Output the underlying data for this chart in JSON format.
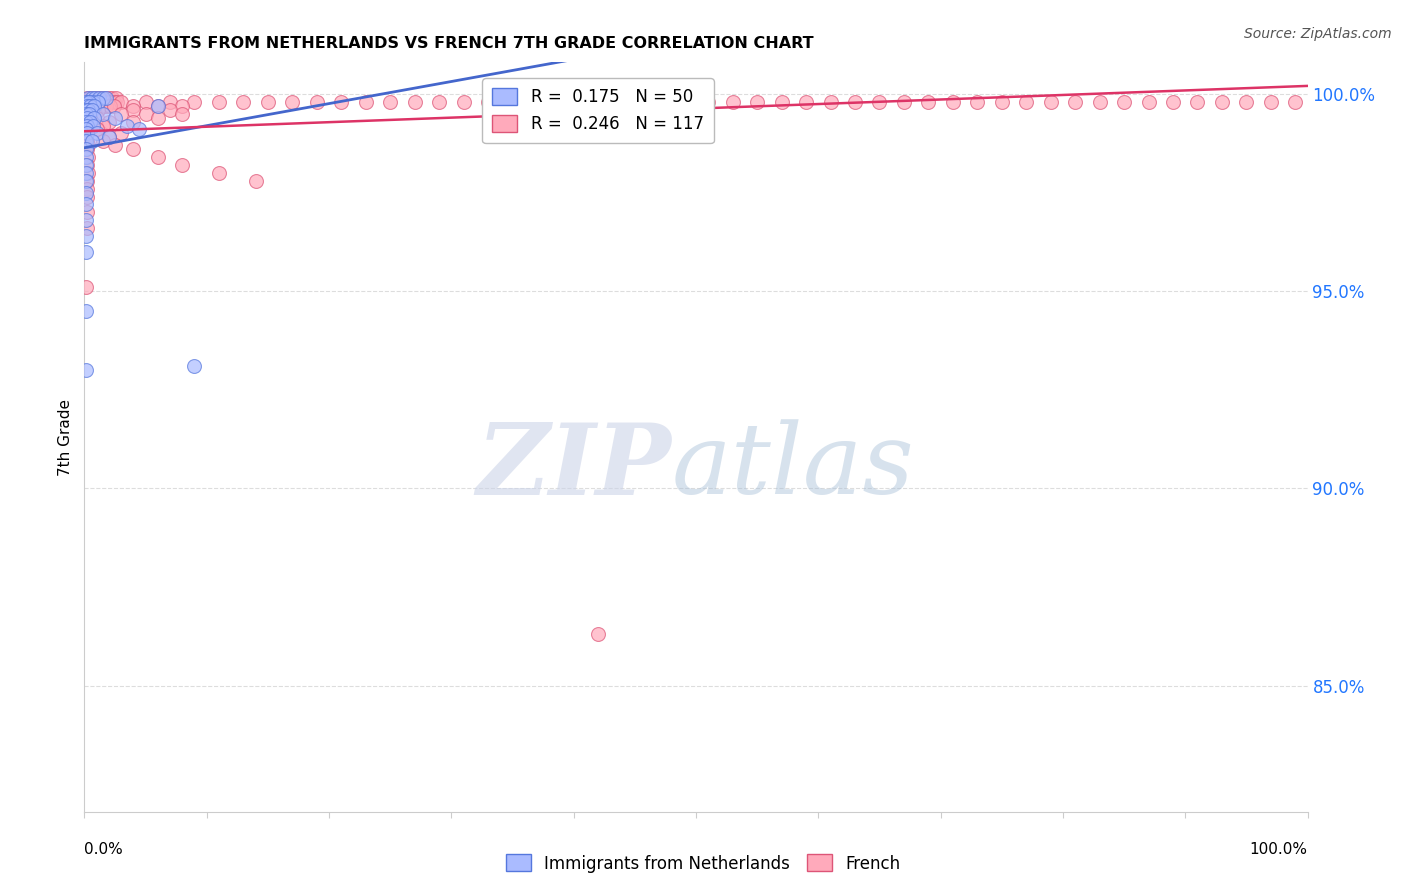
{
  "title": "IMMIGRANTS FROM NETHERLANDS VS FRENCH 7TH GRADE CORRELATION CHART",
  "source": "Source: ZipAtlas.com",
  "ylabel": "7th Grade",
  "ytick_labels": [
    "100.0%",
    "95.0%",
    "90.0%",
    "85.0%"
  ],
  "ytick_values": [
    1.0,
    0.95,
    0.9,
    0.85
  ],
  "xlim": [
    0.0,
    1.0
  ],
  "ylim": [
    0.818,
    1.008
  ],
  "blue_R": 0.175,
  "pink_R": 0.246,
  "blue_color": "#aabbff",
  "pink_color": "#ffaabb",
  "blue_edge_color": "#5577dd",
  "pink_edge_color": "#dd5577",
  "blue_line_color": "#4466cc",
  "pink_line_color": "#dd3366",
  "grid_color": "#dddddd",
  "blue_scatter": [
    [
      0.003,
      0.999
    ],
    [
      0.006,
      0.999
    ],
    [
      0.009,
      0.999
    ],
    [
      0.012,
      0.999
    ],
    [
      0.015,
      0.999
    ],
    [
      0.018,
      0.999
    ],
    [
      0.003,
      0.998
    ],
    [
      0.007,
      0.998
    ],
    [
      0.011,
      0.998
    ],
    [
      0.001,
      0.998
    ],
    [
      0.004,
      0.998
    ],
    [
      0.002,
      0.997
    ],
    [
      0.005,
      0.997
    ],
    [
      0.008,
      0.997
    ],
    [
      0.001,
      0.996
    ],
    [
      0.003,
      0.996
    ],
    [
      0.006,
      0.996
    ],
    [
      0.001,
      0.995
    ],
    [
      0.004,
      0.995
    ],
    [
      0.015,
      0.995
    ],
    [
      0.002,
      0.994
    ],
    [
      0.008,
      0.994
    ],
    [
      0.001,
      0.993
    ],
    [
      0.005,
      0.993
    ],
    [
      0.002,
      0.992
    ],
    [
      0.007,
      0.992
    ],
    [
      0.001,
      0.991
    ],
    [
      0.002,
      0.99
    ],
    [
      0.01,
      0.99
    ],
    [
      0.001,
      0.988
    ],
    [
      0.006,
      0.988
    ],
    [
      0.001,
      0.986
    ],
    [
      0.001,
      0.984
    ],
    [
      0.001,
      0.982
    ],
    [
      0.001,
      0.98
    ],
    [
      0.001,
      0.978
    ],
    [
      0.001,
      0.975
    ],
    [
      0.001,
      0.972
    ],
    [
      0.001,
      0.968
    ],
    [
      0.001,
      0.964
    ],
    [
      0.001,
      0.96
    ],
    [
      0.06,
      0.997
    ],
    [
      0.025,
      0.994
    ],
    [
      0.035,
      0.992
    ],
    [
      0.045,
      0.991
    ],
    [
      0.02,
      0.989
    ],
    [
      0.35,
      0.993
    ],
    [
      0.001,
      0.945
    ],
    [
      0.001,
      0.93
    ],
    [
      0.09,
      0.931
    ]
  ],
  "pink_scatter": [
    [
      0.002,
      0.999
    ],
    [
      0.005,
      0.999
    ],
    [
      0.008,
      0.999
    ],
    [
      0.011,
      0.999
    ],
    [
      0.014,
      0.999
    ],
    [
      0.017,
      0.999
    ],
    [
      0.02,
      0.999
    ],
    [
      0.023,
      0.999
    ],
    [
      0.026,
      0.999
    ],
    [
      0.003,
      0.998
    ],
    [
      0.006,
      0.998
    ],
    [
      0.009,
      0.998
    ],
    [
      0.012,
      0.998
    ],
    [
      0.015,
      0.998
    ],
    [
      0.018,
      0.998
    ],
    [
      0.021,
      0.998
    ],
    [
      0.024,
      0.998
    ],
    [
      0.027,
      0.998
    ],
    [
      0.03,
      0.998
    ],
    [
      0.05,
      0.998
    ],
    [
      0.07,
      0.998
    ],
    [
      0.09,
      0.998
    ],
    [
      0.11,
      0.998
    ],
    [
      0.13,
      0.998
    ],
    [
      0.15,
      0.998
    ],
    [
      0.17,
      0.998
    ],
    [
      0.19,
      0.998
    ],
    [
      0.21,
      0.998
    ],
    [
      0.23,
      0.998
    ],
    [
      0.25,
      0.998
    ],
    [
      0.27,
      0.998
    ],
    [
      0.29,
      0.998
    ],
    [
      0.31,
      0.998
    ],
    [
      0.33,
      0.998
    ],
    [
      0.35,
      0.998
    ],
    [
      0.37,
      0.998
    ],
    [
      0.39,
      0.998
    ],
    [
      0.41,
      0.998
    ],
    [
      0.43,
      0.998
    ],
    [
      0.45,
      0.998
    ],
    [
      0.47,
      0.998
    ],
    [
      0.49,
      0.998
    ],
    [
      0.51,
      0.998
    ],
    [
      0.53,
      0.998
    ],
    [
      0.55,
      0.998
    ],
    [
      0.57,
      0.998
    ],
    [
      0.59,
      0.998
    ],
    [
      0.61,
      0.998
    ],
    [
      0.63,
      0.998
    ],
    [
      0.65,
      0.998
    ],
    [
      0.67,
      0.998
    ],
    [
      0.69,
      0.998
    ],
    [
      0.71,
      0.998
    ],
    [
      0.73,
      0.998
    ],
    [
      0.75,
      0.998
    ],
    [
      0.77,
      0.998
    ],
    [
      0.79,
      0.998
    ],
    [
      0.81,
      0.998
    ],
    [
      0.83,
      0.998
    ],
    [
      0.85,
      0.998
    ],
    [
      0.87,
      0.998
    ],
    [
      0.89,
      0.998
    ],
    [
      0.91,
      0.998
    ],
    [
      0.93,
      0.998
    ],
    [
      0.95,
      0.998
    ],
    [
      0.97,
      0.998
    ],
    [
      0.99,
      0.998
    ],
    [
      0.003,
      0.997
    ],
    [
      0.006,
      0.997
    ],
    [
      0.009,
      0.997
    ],
    [
      0.012,
      0.997
    ],
    [
      0.015,
      0.997
    ],
    [
      0.018,
      0.997
    ],
    [
      0.021,
      0.997
    ],
    [
      0.024,
      0.997
    ],
    [
      0.04,
      0.997
    ],
    [
      0.06,
      0.997
    ],
    [
      0.08,
      0.997
    ],
    [
      0.002,
      0.996
    ],
    [
      0.005,
      0.996
    ],
    [
      0.008,
      0.996
    ],
    [
      0.011,
      0.996
    ],
    [
      0.04,
      0.996
    ],
    [
      0.07,
      0.996
    ],
    [
      0.001,
      0.995
    ],
    [
      0.004,
      0.995
    ],
    [
      0.03,
      0.995
    ],
    [
      0.05,
      0.995
    ],
    [
      0.08,
      0.995
    ],
    [
      0.002,
      0.994
    ],
    [
      0.01,
      0.994
    ],
    [
      0.06,
      0.994
    ],
    [
      0.001,
      0.993
    ],
    [
      0.02,
      0.993
    ],
    [
      0.04,
      0.993
    ],
    [
      0.001,
      0.992
    ],
    [
      0.015,
      0.992
    ],
    [
      0.001,
      0.991
    ],
    [
      0.01,
      0.991
    ],
    [
      0.002,
      0.99
    ],
    [
      0.03,
      0.99
    ],
    [
      0.001,
      0.989
    ],
    [
      0.02,
      0.989
    ],
    [
      0.002,
      0.988
    ],
    [
      0.015,
      0.988
    ],
    [
      0.003,
      0.987
    ],
    [
      0.025,
      0.987
    ],
    [
      0.002,
      0.986
    ],
    [
      0.04,
      0.986
    ],
    [
      0.003,
      0.984
    ],
    [
      0.06,
      0.984
    ],
    [
      0.002,
      0.982
    ],
    [
      0.08,
      0.982
    ],
    [
      0.003,
      0.98
    ],
    [
      0.11,
      0.98
    ],
    [
      0.002,
      0.978
    ],
    [
      0.14,
      0.978
    ],
    [
      0.002,
      0.976
    ],
    [
      0.002,
      0.974
    ],
    [
      0.002,
      0.97
    ],
    [
      0.002,
      0.966
    ],
    [
      0.001,
      0.951
    ],
    [
      0.42,
      0.863
    ]
  ]
}
